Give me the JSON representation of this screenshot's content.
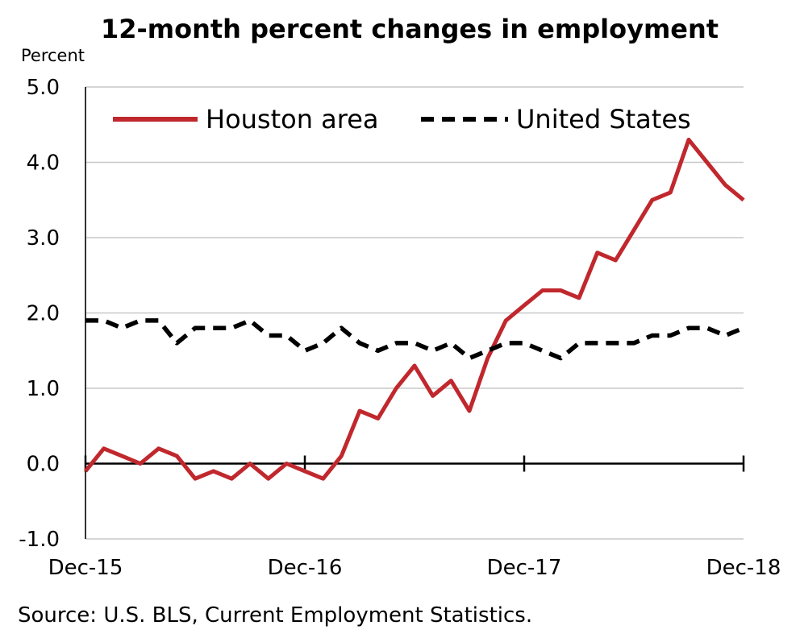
{
  "chart_data": {
    "type": "line",
    "title": "12-month percent changes in employment",
    "ylabel": "Percent",
    "xlabel": "",
    "ylim": [
      -1.0,
      5.0
    ],
    "y_ticks": [
      -1.0,
      0.0,
      1.0,
      2.0,
      3.0,
      4.0,
      5.0
    ],
    "y_tick_labels": [
      "-1.0",
      "0.0",
      "1.0",
      "2.0",
      "3.0",
      "4.0",
      "5.0"
    ],
    "x_tick_labels": [
      "Dec-15",
      "Dec-16",
      "Dec-17",
      "Dec-18"
    ],
    "x_tick_index": [
      0,
      12,
      24,
      36
    ],
    "grid": true,
    "legend": "top",
    "series": [
      {
        "name": "Houston area",
        "color": "#c0282d",
        "style": "solid",
        "values": [
          -0.1,
          0.2,
          0.1,
          0.0,
          0.2,
          0.1,
          -0.2,
          -0.1,
          -0.2,
          0.0,
          -0.2,
          0.0,
          -0.1,
          -0.2,
          0.1,
          0.7,
          0.6,
          1.0,
          1.3,
          0.9,
          1.1,
          0.7,
          1.4,
          1.9,
          2.1,
          2.3,
          2.3,
          2.2,
          2.8,
          2.7,
          3.1,
          3.5,
          3.6,
          4.3,
          4.0,
          3.7,
          3.5
        ]
      },
      {
        "name": "United States",
        "color": "#000000",
        "style": "dashed",
        "values": [
          1.9,
          1.9,
          1.8,
          1.9,
          1.9,
          1.6,
          1.8,
          1.8,
          1.8,
          1.9,
          1.7,
          1.7,
          1.5,
          1.6,
          1.8,
          1.6,
          1.5,
          1.6,
          1.6,
          1.5,
          1.6,
          1.4,
          1.5,
          1.6,
          1.6,
          1.5,
          1.4,
          1.6,
          1.6,
          1.6,
          1.6,
          1.7,
          1.7,
          1.8,
          1.8,
          1.7,
          1.8
        ]
      }
    ]
  },
  "source": "Source: U.S. BLS, Current Employment Statistics."
}
